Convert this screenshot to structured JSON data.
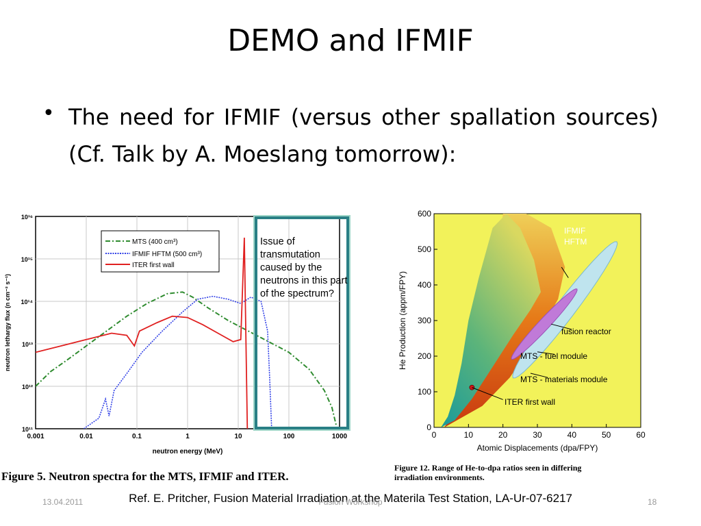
{
  "slide": {
    "title": "DEMO and IFMIF",
    "bullet": "The need for IFMIF (versus other spallation sources) (Cf. Talk by A. Moeslang tomorrow):",
    "callout": "Issue of transmutation caused by the neutrons in this part of the spectrum?",
    "reference": "Ref. E. Pritcher, Fusion Material Irradiation at the Materila Test Station, LA-Ur-07-6217",
    "footer": {
      "date": "13.04.2011",
      "center": "Fusion Workshop",
      "page": "18"
    }
  },
  "figure_left": {
    "caption": "Figure 5.  Neutron spectra for the MTS, IFMIF and ITER.",
    "xlabel": "neutron energy (MeV)",
    "ylabel": "neutron lethargy flux (n cm⁻² s⁻¹)",
    "x_ticks": [
      "0.001",
      "0.01",
      "0.1",
      "1",
      "10",
      "100",
      "1000"
    ],
    "y_ticks": [
      "10¹¹",
      "10¹²",
      "10¹³",
      "10¹⁴",
      "10¹⁵",
      "10¹⁶"
    ],
    "legend": [
      "MTS (400 cm³)",
      "IFMIF HFTM (500 cm³)",
      "ITER first wall"
    ],
    "colors": {
      "mts": "#2e8b2e",
      "ifmif": "#2f3fe6",
      "iter": "#e02020"
    }
  },
  "figure_right": {
    "caption_line1": "Figure 12.   Range of He-to-dpa ratios seen in differing",
    "caption_line2": "irradiation environments.",
    "xlabel": "Atomic Displacements (dpa/FPY)",
    "ylabel": "He Production (appm/FPY)",
    "x_ticks": [
      "0",
      "10",
      "20",
      "30",
      "40",
      "50",
      "60"
    ],
    "y_ticks": [
      "0",
      "100",
      "200",
      "300",
      "400",
      "500",
      "600"
    ],
    "labels": [
      "IFMIF",
      "HFTM",
      "fusion reactor",
      "MTS - fuel module",
      "MTS - materials module",
      "ITER first wall"
    ],
    "colors": {
      "background": "#f2f25a",
      "ifmif": "#bfe4ee",
      "fusion": "#c07ad8",
      "iter_dot": "#d01818"
    }
  }
}
